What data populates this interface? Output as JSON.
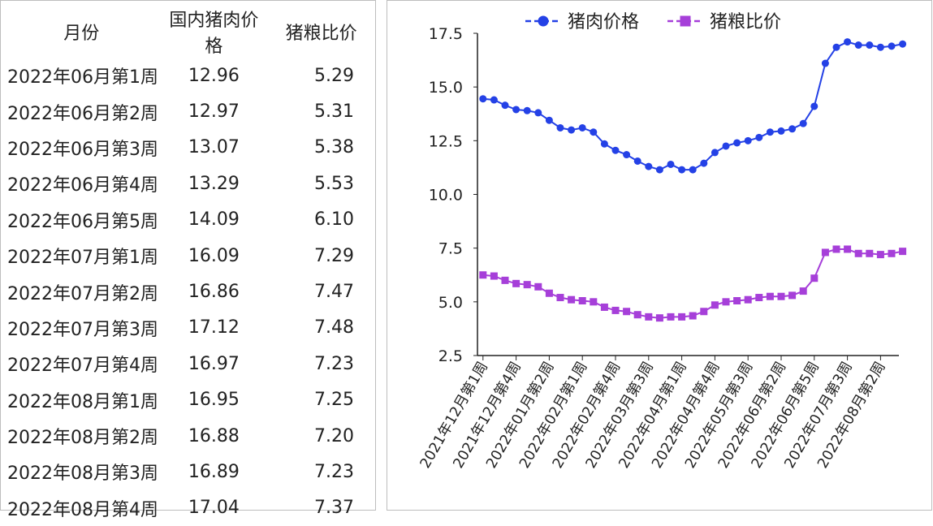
{
  "table": {
    "headers": [
      "月份",
      "国内猪肉价格",
      "猪粮比价"
    ],
    "rows": [
      [
        "2022年06月第1周",
        "12.96",
        "5.29"
      ],
      [
        "2022年06月第2周",
        "12.97",
        "5.31"
      ],
      [
        "2022年06月第3周",
        "13.07",
        "5.38"
      ],
      [
        "2022年06月第4周",
        "13.29",
        "5.53"
      ],
      [
        "2022年06月第5周",
        "14.09",
        "6.10"
      ],
      [
        "2022年07月第1周",
        "16.09",
        "7.29"
      ],
      [
        "2022年07月第2周",
        "16.86",
        "7.47"
      ],
      [
        "2022年07月第3周",
        "17.12",
        "7.48"
      ],
      [
        "2022年07月第4周",
        "16.97",
        "7.23"
      ],
      [
        "2022年08月第1周",
        "16.95",
        "7.25"
      ],
      [
        "2022年08月第2周",
        "16.88",
        "7.20"
      ],
      [
        "2022年08月第3周",
        "16.89",
        "7.23"
      ],
      [
        "2022年08月第4周",
        "17.04",
        "7.37"
      ]
    ]
  },
  "chart_data": {
    "type": "line",
    "title": "",
    "xlabel": "",
    "ylabel": "",
    "ylim": [
      2.5,
      17.5
    ],
    "yticks": [
      "2.5",
      "5.0",
      "7.5",
      "10.0",
      "12.5",
      "15.0",
      "17.5"
    ],
    "x_tick_labels": [
      "2021年12月第1周",
      "2021年12月第4周",
      "2022年01月第2周",
      "2022年02月第1周",
      "2022年02月第4周",
      "2022年03月第3周",
      "2022年04月第1周",
      "2022年04月第4周",
      "2022年05月第3周",
      "2022年06月第2周",
      "2022年06月第5周",
      "2022年07月第3周",
      "2022年08月第2周"
    ],
    "legend_position": "top",
    "grid": false,
    "series": [
      {
        "name": "猪肉价格",
        "color": "#2441e6",
        "marker": "circle",
        "values": [
          14.45,
          14.4,
          14.15,
          13.95,
          13.9,
          13.8,
          13.45,
          13.1,
          13.0,
          13.1,
          12.9,
          12.35,
          12.05,
          11.85,
          11.55,
          11.3,
          11.15,
          11.4,
          11.15,
          11.15,
          11.45,
          11.95,
          12.25,
          12.4,
          12.5,
          12.65,
          12.9,
          12.95,
          13.05,
          13.3,
          14.1,
          16.1,
          16.85,
          17.1,
          16.95,
          16.95,
          16.85,
          16.9,
          17.0
        ]
      },
      {
        "name": "猪粮比价",
        "color": "#a63fd9",
        "marker": "square",
        "values": [
          6.25,
          6.2,
          6.0,
          5.85,
          5.8,
          5.7,
          5.4,
          5.2,
          5.1,
          5.05,
          5.0,
          4.75,
          4.6,
          4.55,
          4.4,
          4.3,
          4.25,
          4.3,
          4.3,
          4.35,
          4.55,
          4.85,
          5.0,
          5.05,
          5.1,
          5.2,
          5.25,
          5.25,
          5.3,
          5.5,
          6.1,
          7.3,
          7.45,
          7.45,
          7.25,
          7.25,
          7.2,
          7.25,
          7.35
        ]
      }
    ]
  }
}
